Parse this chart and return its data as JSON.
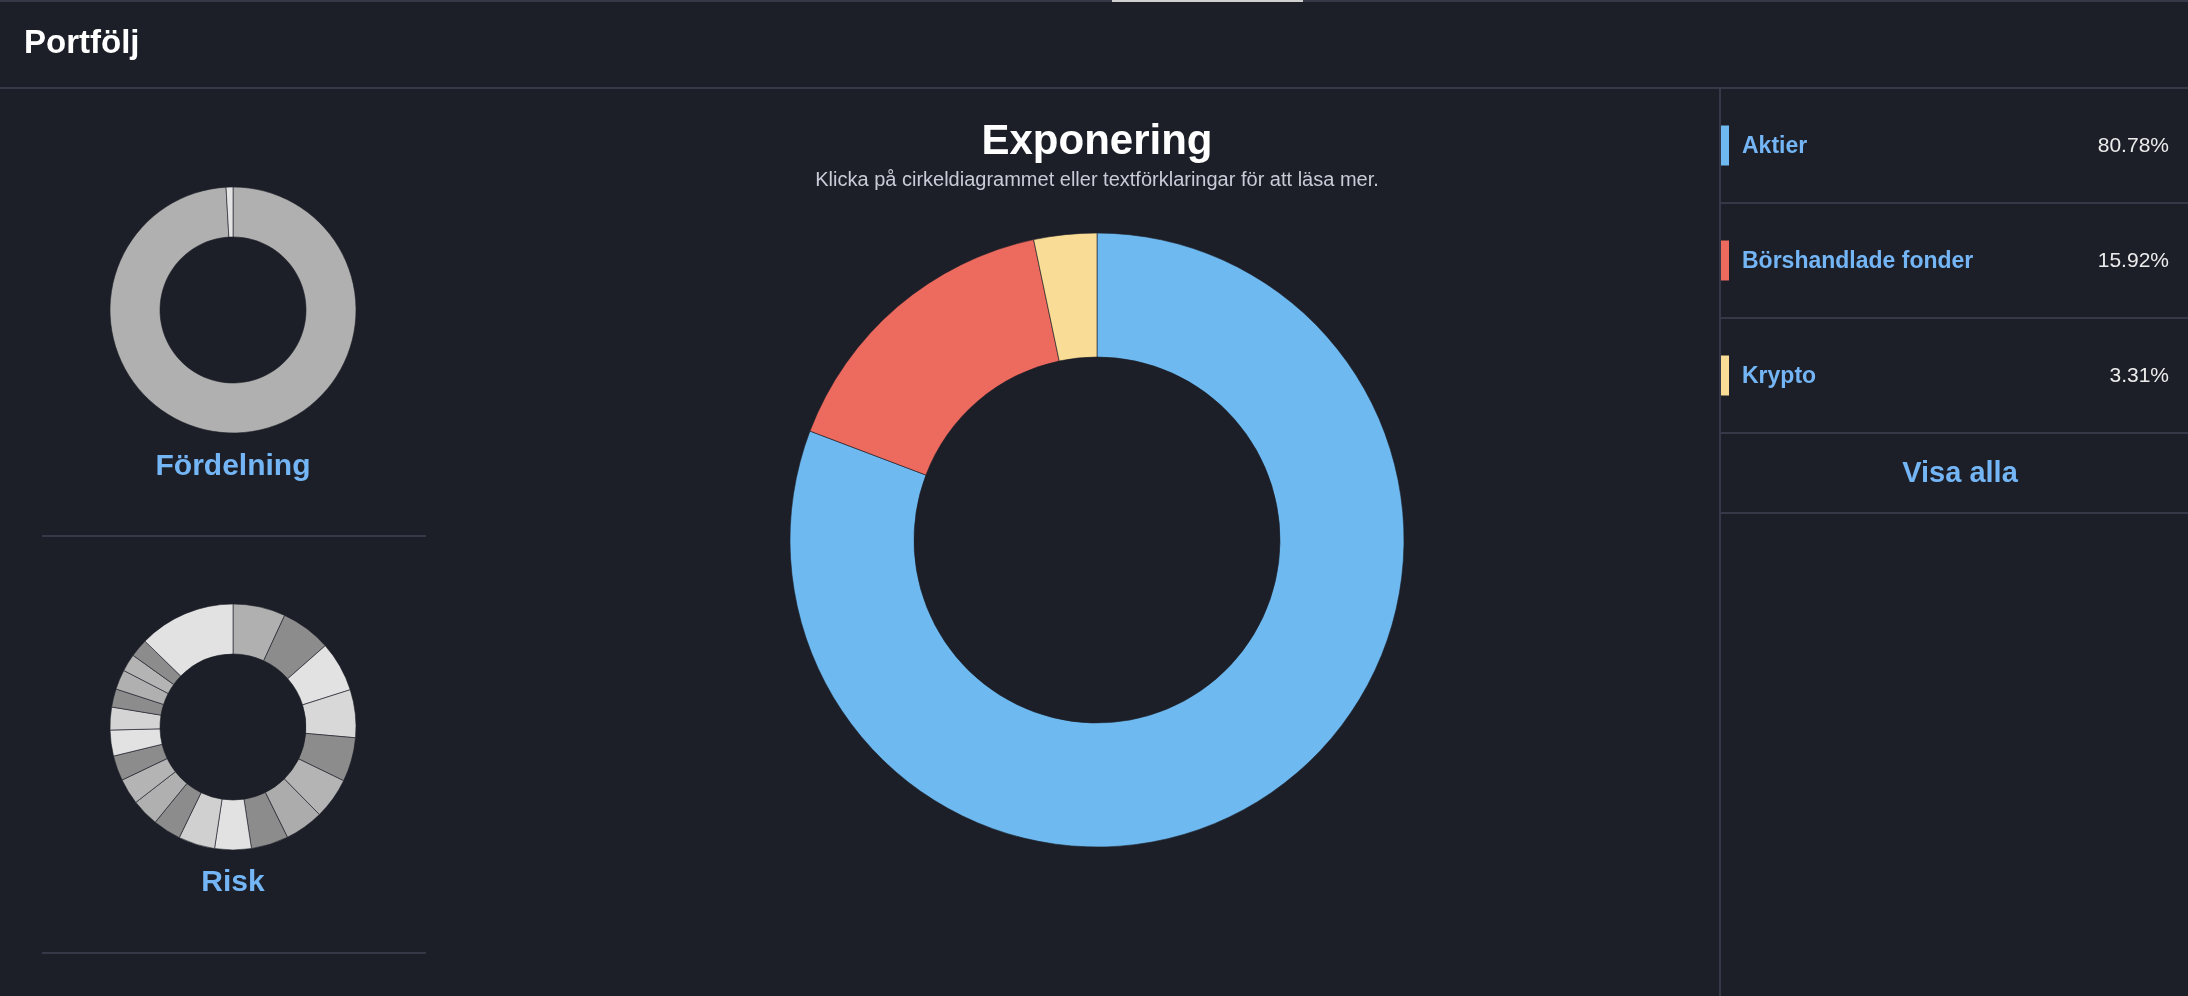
{
  "chart_data": [
    {
      "type": "donut",
      "title": "Fördelning",
      "categories": [
        null,
        null
      ],
      "values": [
        99.1,
        0.9
      ],
      "colors": [
        "#b0b0b0",
        "#e4e4e4"
      ],
      "annotations": [
        "Portfölj"
      ]
    },
    {
      "type": "donut",
      "title": "Risk",
      "categories": [
        null,
        null,
        null,
        null,
        null,
        null,
        null,
        null,
        null,
        null,
        null,
        null,
        null,
        null,
        null,
        null,
        null,
        null,
        null,
        null,
        null
      ],
      "values": [
        6.9,
        6.6,
        6.6,
        6.3,
        5.8,
        5.4,
        5.1,
        4.9,
        4.8,
        4.8,
        3.7,
        3.6,
        3.4,
        3.3,
        3.4,
        3.0,
        2.4,
        2.6,
        2.3,
        2.4,
        12.7
      ],
      "colors": [
        "#b0b0b0",
        "#8c8c8c",
        "#e2e2e2",
        "#d8d8d8",
        "#8c8c8c",
        "#b4b4b4",
        "#acacac",
        "#8c8c8c",
        "#e2e2e2",
        "#d0d0d0",
        "#8c8c8c",
        "#b0b0b0",
        "#b4b4b4",
        "#8c8c8c",
        "#e2e2e2",
        "#d4d4d4",
        "#8c8c8c",
        "#b0b0b0",
        "#b4b4b4",
        "#8c8c8c",
        "#e2e2e2"
      ]
    },
    {
      "type": "donut",
      "title": "Exponering",
      "subtitle": "Klicka på cirkeldiagrammet eller textförklaringar för att läsa mer.",
      "categories": [
        "Aktier",
        "Börshandlade fonder",
        "Krypto"
      ],
      "values": [
        80.78,
        15.92,
        3.31
      ],
      "colors": [
        "#6ebaf0",
        "#ec6a5e",
        "#f9dc95"
      ],
      "value_labels": [
        "80.78%",
        "15.92%",
        "3.31%"
      ],
      "legend": "right",
      "annotations": [
        "Visa alla"
      ]
    }
  ]
}
